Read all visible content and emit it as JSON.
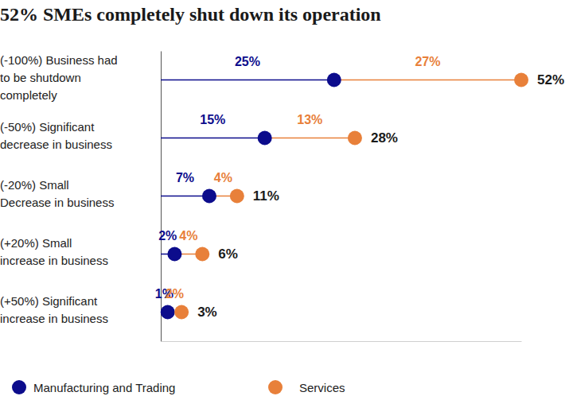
{
  "chart_data": {
    "type": "dot",
    "title": "52% SMEs completely shut down its operation",
    "orientation": "horizontal",
    "stacked": true,
    "data_labels": true,
    "tick_labels": false,
    "legend": "bottom",
    "categories": [
      "(-100%) Business had\nto be shutdown\ncompletely",
      "(-50%) Significant\ndecrease in business",
      "(-20%) Small\nDecrease in business",
      "(+20%) Small\nincrease in business",
      "(+50%) Significant\nincrease in business"
    ],
    "xlim": [
      0,
      52
    ],
    "series": [
      {
        "name": "Manufacturing and Trading",
        "color": "#0c0c8c",
        "marker": "circle",
        "values": [
          25,
          15,
          7,
          2,
          1
        ],
        "value_labels": [
          "25%",
          "15%",
          "7%",
          "2%",
          "1%"
        ]
      },
      {
        "name": "Services",
        "color": "#e8803a",
        "marker": "circle",
        "values": [
          27,
          13,
          4,
          4,
          2
        ],
        "value_labels": [
          "27%",
          "13%",
          "4%",
          "4%",
          "2%"
        ]
      }
    ],
    "totals": [
      52,
      28,
      11,
      6,
      3
    ],
    "total_labels": [
      "52%",
      "28%",
      "11%",
      "6%",
      "3%"
    ]
  }
}
